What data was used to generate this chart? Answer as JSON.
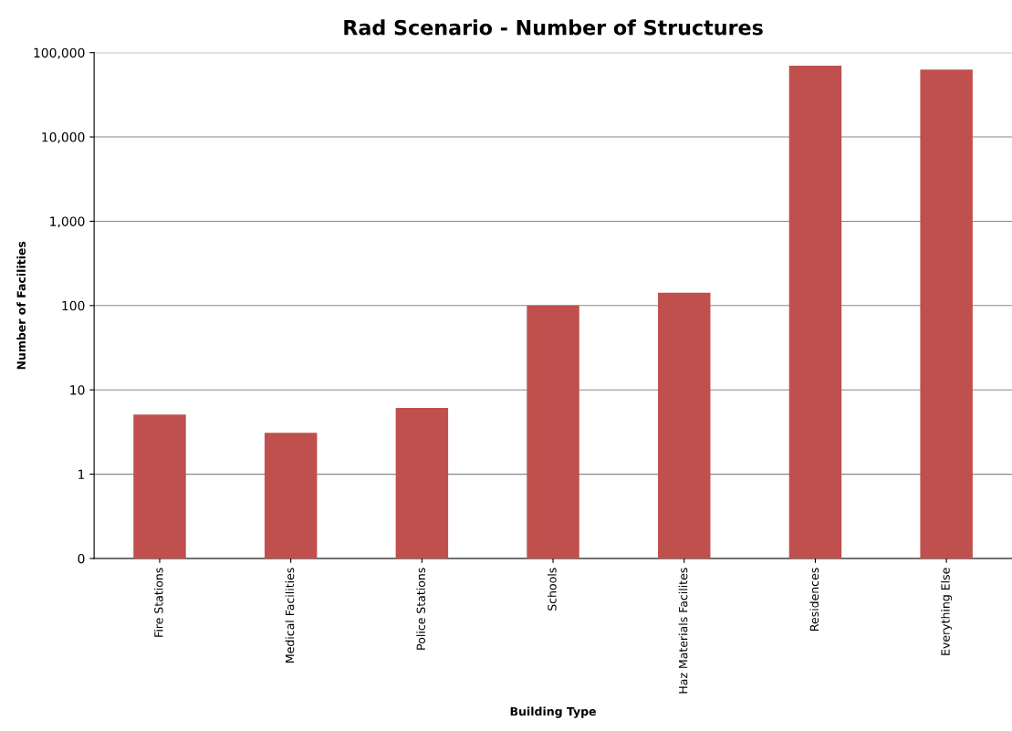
{
  "chart_data": {
    "type": "bar",
    "title": "Rad Scenario - Number of Structures",
    "xlabel": "Building Type",
    "ylabel": "Number of Facilities",
    "categories": [
      "Fire Stations",
      "Medical Facilities",
      "Police Stations",
      "Schools",
      "Haz Materials Facilites",
      "Residences",
      "Everything Else"
    ],
    "values": [
      5,
      3,
      6,
      100,
      142,
      70000,
      63000
    ],
    "color": "#c0504d",
    "log": "y",
    "ylim": [
      0.1,
      100000
    ],
    "yticks": [
      {
        "value": 0.1,
        "label": "0"
      },
      {
        "value": 1,
        "label": "1"
      },
      {
        "value": 10,
        "label": "10"
      },
      {
        "value": 100,
        "label": "100"
      },
      {
        "value": 1000,
        "label": "1,000"
      },
      {
        "value": 10000,
        "label": "10,000"
      },
      {
        "value": 100000,
        "label": "100,000"
      }
    ],
    "grid": "y",
    "legend": false
  }
}
